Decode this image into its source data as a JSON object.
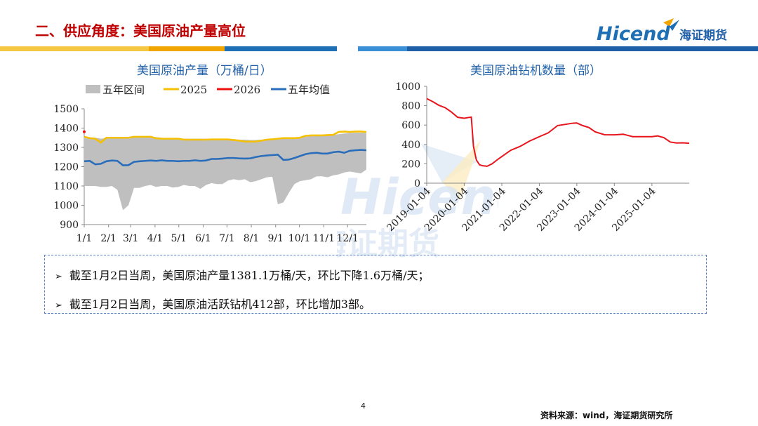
{
  "header": {
    "title": "二、供应角度：美国原油产量高位",
    "logo_text": "Hicend",
    "logo_cn": "海证期货",
    "bar_colors": [
      "#f4c842",
      "#1f6fb5",
      "#3b8fd6",
      "#1f5fa8"
    ]
  },
  "watermark": {
    "text_en": "Hicend",
    "text_cn": "海证期货"
  },
  "chart_data": [
    {
      "type": "area",
      "title": "美国原油产量（万桶/日）",
      "legend": [
        "五年区间",
        "2025",
        "2026",
        "五年均值"
      ],
      "legend_placement": "top",
      "xticks": [
        "1/1",
        "2/1",
        "3/1",
        "4/1",
        "5/1",
        "6/1",
        "7/1",
        "8/1",
        "9/1",
        "10/1",
        "11/1",
        "12/1"
      ],
      "xlabels_rendered": [
        "1/1",
        "2/1",
        "3/1",
        "4/1",
        "5/1",
        "6/1",
        "7/1",
        "8/1",
        "9/1",
        "10/1",
        "11/1",
        "12/1"
      ],
      "ylim": [
        900,
        1500
      ],
      "yticks": [
        900,
        1000,
        1100,
        1200,
        1300,
        1400,
        1500
      ],
      "series": [
        {
          "name": "五年区间",
          "color": "#bfbfbf",
          "week": [
            1,
            2,
            3,
            4,
            5,
            6,
            7,
            8,
            9,
            10,
            11,
            12,
            13,
            14,
            15,
            16,
            17,
            18,
            19,
            20,
            21,
            22,
            23,
            24,
            25,
            26,
            27,
            28,
            29,
            30,
            31,
            32,
            33,
            34,
            35,
            36,
            37,
            38,
            39,
            40,
            41,
            42,
            43,
            44,
            45,
            46,
            47,
            48,
            49,
            50,
            51,
            52
          ],
          "high": [
            1355,
            1352,
            1350,
            1345,
            1348,
            1350,
            1350,
            1350,
            1352,
            1355,
            1355,
            1355,
            1355,
            1353,
            1350,
            1348,
            1348,
            1348,
            1345,
            1345,
            1345,
            1345,
            1345,
            1345,
            1345,
            1345,
            1345,
            1343,
            1340,
            1340,
            1338,
            1338,
            1340,
            1342,
            1345,
            1345,
            1347,
            1350,
            1350,
            1352,
            1355,
            1358,
            1360,
            1362,
            1362,
            1365,
            1368,
            1372,
            1375,
            1376,
            1376,
            1375
          ],
          "low": [
            1100,
            1100,
            1100,
            1095,
            1095,
            1100,
            1080,
            975,
            1000,
            1090,
            1090,
            1100,
            1105,
            1095,
            1100,
            1100,
            1092,
            1095,
            1105,
            1100,
            1100,
            1085,
            1105,
            1115,
            1110,
            1110,
            1128,
            1135,
            1130,
            1135,
            1120,
            1125,
            1135,
            1145,
            1148,
            1005,
            1015,
            1065,
            1110,
            1125,
            1130,
            1135,
            1150,
            1150,
            1145,
            1155,
            1160,
            1170,
            1175,
            1170,
            1165,
            1185
          ]
        },
        {
          "name": "2025",
          "color": "#f5c000",
          "week": [
            1,
            2,
            3,
            4,
            5,
            6,
            7,
            8,
            9,
            10,
            11,
            12,
            13,
            14,
            15,
            16,
            17,
            18,
            19,
            20,
            21,
            22,
            23,
            24,
            25,
            26,
            27,
            28,
            29,
            30,
            31,
            32,
            33,
            34,
            35,
            36,
            37,
            38,
            39,
            40,
            41,
            42,
            43,
            44,
            45,
            46,
            47,
            48,
            49,
            50,
            51,
            52
          ],
          "values": [
            1355,
            1348,
            1345,
            1325,
            1350,
            1350,
            1350,
            1350,
            1350,
            1355,
            1355,
            1355,
            1355,
            1347,
            1345,
            1345,
            1345,
            1345,
            1340,
            1340,
            1340,
            1340,
            1340,
            1341,
            1341,
            1341,
            1341,
            1338,
            1335,
            1330,
            1330,
            1330,
            1335,
            1340,
            1342,
            1345,
            1348,
            1348,
            1348,
            1350,
            1360,
            1362,
            1362,
            1362,
            1364,
            1365,
            1380,
            1382,
            1380,
            1382,
            1382,
            1380
          ]
        },
        {
          "name": "2026",
          "color": "#ee1010",
          "week": [
            1
          ],
          "values": [
            1381.1
          ]
        },
        {
          "name": "五年均值",
          "color": "#2a6ebb",
          "week": [
            1,
            2,
            3,
            4,
            5,
            6,
            7,
            8,
            9,
            10,
            11,
            12,
            13,
            14,
            15,
            16,
            17,
            18,
            19,
            20,
            21,
            22,
            23,
            24,
            25,
            26,
            27,
            28,
            29,
            30,
            31,
            32,
            33,
            34,
            35,
            36,
            37,
            38,
            39,
            40,
            41,
            42,
            43,
            44,
            45,
            46,
            47,
            48,
            49,
            50,
            51,
            52
          ],
          "values": [
            1228,
            1230,
            1212,
            1215,
            1228,
            1232,
            1230,
            1207,
            1208,
            1225,
            1228,
            1230,
            1232,
            1230,
            1233,
            1230,
            1230,
            1228,
            1230,
            1230,
            1233,
            1230,
            1232,
            1240,
            1240,
            1242,
            1245,
            1245,
            1243,
            1242,
            1243,
            1250,
            1255,
            1258,
            1260,
            1262,
            1235,
            1237,
            1245,
            1255,
            1265,
            1270,
            1272,
            1268,
            1268,
            1275,
            1278,
            1272,
            1282,
            1285,
            1287,
            1285
          ]
        }
      ]
    },
    {
      "type": "line",
      "title": "美国原油钻机数量（部）",
      "xticks": [
        "2019-01-04",
        "2020-01-04",
        "2021-01-04",
        "2022-01-04",
        "2023-01-04",
        "2024-01-04",
        "2025-01-04"
      ],
      "ylim": [
        0,
        1000
      ],
      "yticks": [
        0,
        200,
        400,
        600,
        800,
        1000
      ],
      "series": [
        {
          "name": "",
          "color": "#e8141c",
          "x": [
            "2019-01-04",
            "2019-03-01",
            "2019-05-01",
            "2019-07-01",
            "2019-09-01",
            "2019-11-01",
            "2020-01-04",
            "2020-02-14",
            "2020-03-13",
            "2020-04-03",
            "2020-05-01",
            "2020-06-01",
            "2020-07-01",
            "2020-08-14",
            "2020-10-01",
            "2020-12-01",
            "2021-01-04",
            "2021-04-01",
            "2021-07-01",
            "2021-10-01",
            "2022-01-04",
            "2022-04-01",
            "2022-07-01",
            "2022-10-01",
            "2022-12-01",
            "2023-01-04",
            "2023-03-01",
            "2023-05-01",
            "2023-07-01",
            "2023-10-01",
            "2024-01-04",
            "2024-04-01",
            "2024-07-01",
            "2024-10-01",
            "2025-01-04",
            "2025-03-01",
            "2025-05-01",
            "2025-07-01",
            "2025-09-01",
            "2025-11-01",
            "2026-01-02"
          ],
          "values": [
            873,
            843,
            805,
            780,
            735,
            680,
            670,
            678,
            682,
            380,
            240,
            190,
            180,
            175,
            200,
            250,
            275,
            340,
            380,
            435,
            480,
            520,
            595,
            610,
            620,
            621,
            595,
            575,
            530,
            500,
            499,
            505,
            480,
            480,
            480,
            488,
            470,
            425,
            415,
            417,
            412
          ]
        }
      ]
    }
  ],
  "bullets": [
    "截至1月2日当周，美国原油产量1381.1万桶/天，环比下降1.6万桶/天；",
    "截至1月2日当周，美国原油活跃钻机412部，环比增加3部。"
  ],
  "bullet_mark": "➢",
  "footer": {
    "page": "4",
    "source": "资料来源：wind，海证期货研究所"
  }
}
